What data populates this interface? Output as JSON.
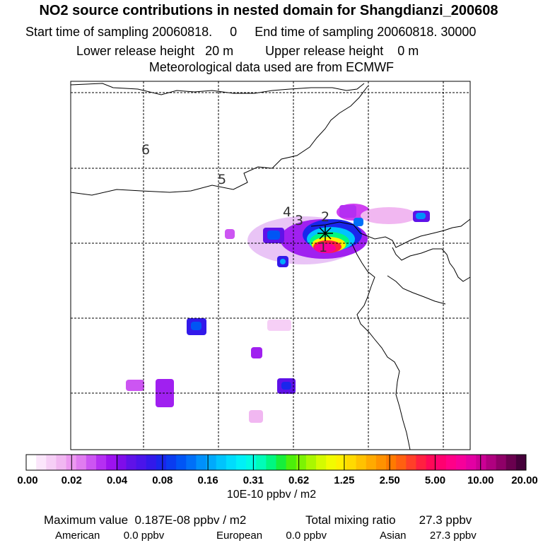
{
  "header": {
    "title": "NO2 source contributions in nested domain for Shangdianzi_200608",
    "start_label": "Start time of sampling 20060818.",
    "start_hour": "0",
    "end_label": "End time of sampling 20060818. 30000",
    "lower_label": "Lower release height",
    "lower_value": "20 m",
    "upper_label": "Upper release height",
    "upper_value": "0 m",
    "met_source": "Meteorological data used are from ECMWF"
  },
  "chart_data": {
    "type": "heatmap",
    "title": "NO2 source contributions in nested domain for Shangdianzi_200608",
    "colorbar": {
      "tick_labels": [
        "0.00",
        "0.02",
        "0.04",
        "0.08",
        "0.16",
        "0.31",
        "0.62",
        "1.25",
        "2.50",
        "5.00",
        "10.00",
        "20.00"
      ],
      "tick_values": [
        0.0,
        0.02,
        0.04,
        0.08,
        0.16,
        0.31,
        0.62,
        1.25,
        2.5,
        5.0,
        10.0,
        20.0
      ],
      "colors": [
        "#ffffff",
        "#fbe6fb",
        "#f6cff6",
        "#f1b7f1",
        "#ec99f0",
        "#e07cf0",
        "#cc55f2",
        "#b52ff2",
        "#9d12ef",
        "#7f0dea",
        "#5f12e8",
        "#4a14ea",
        "#3219ea",
        "#1a26ec",
        "#0a3cf0",
        "#0055f5",
        "#0070f8",
        "#0090fb",
        "#00aafc",
        "#00c4fd",
        "#00dcfd",
        "#00f0f7",
        "#00fbe3",
        "#00fcb8",
        "#00f780",
        "#16ef3a",
        "#4cef0a",
        "#7cf303",
        "#aaf700",
        "#d4fb00",
        "#f2fb00",
        "#fff000",
        "#ffda00",
        "#ffc200",
        "#ffaa00",
        "#ff9200",
        "#ff7a00",
        "#ff6010",
        "#ff4028",
        "#ff2040",
        "#ff0858",
        "#ff0070",
        "#ff0088",
        "#f6009a",
        "#e300a3",
        "#cc0095",
        "#b00080",
        "#8f0068",
        "#6a004f",
        "#45003a"
      ],
      "unit": "10E-10 ppbv / m2"
    },
    "receptor": {
      "name": "Shangdianzi",
      "marker": "asterisk"
    },
    "trajectory_labels": [
      "1",
      "2",
      "3",
      "4",
      "5",
      "6"
    ],
    "plumes": [
      {
        "value": 5.0
      },
      {
        "value": 2.5
      },
      {
        "value": 0.62
      },
      {
        "value": 0.16
      },
      {
        "value": 0.08
      },
      {
        "value": 0.05
      },
      {
        "value": 0.04
      },
      {
        "value": 0.02
      }
    ]
  },
  "footer": {
    "max_label": "Maximum value",
    "max_value": "0.187E-08 ppbv / m2",
    "total_label": "Total mixing ratio",
    "total_value": "27.3 ppbv",
    "american_label": "American",
    "american_value": "0.0 ppbv",
    "european_label": "European",
    "european_value": "0.0 ppbv",
    "asian_label": "Asian",
    "asian_value": "27.3 ppbv"
  }
}
